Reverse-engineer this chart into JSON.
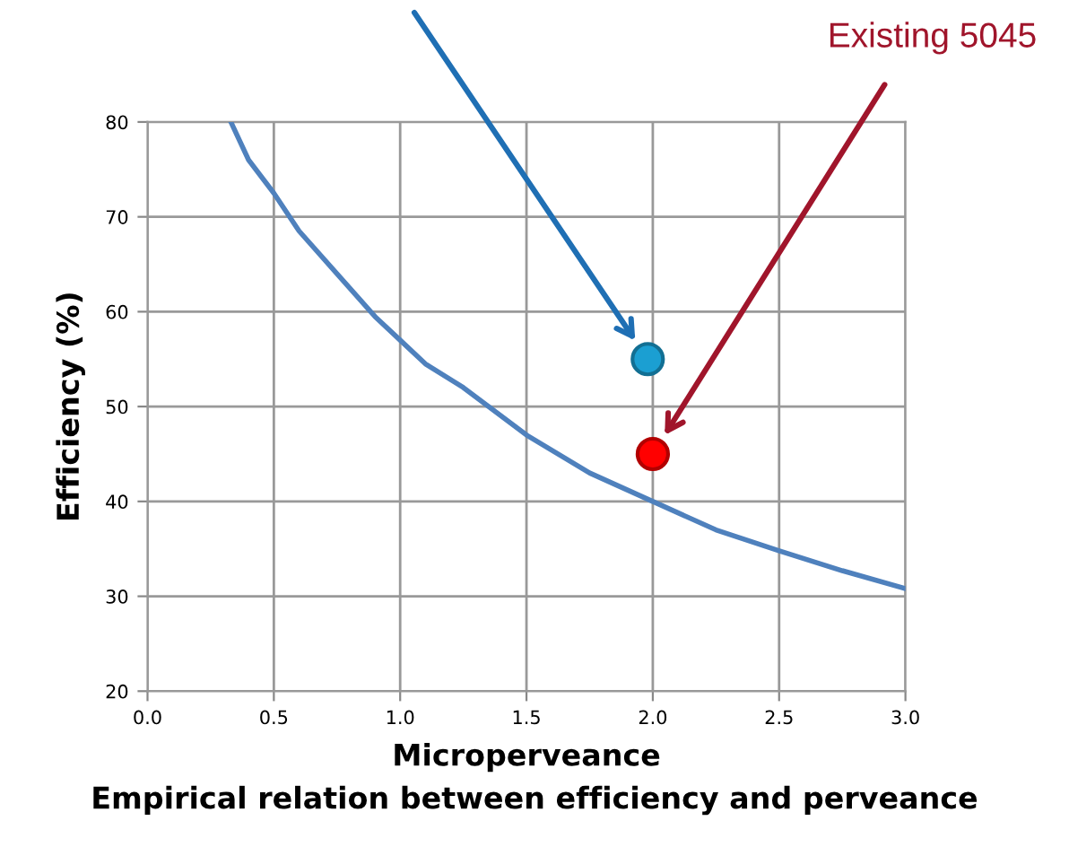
{
  "chart_data": {
    "type": "line",
    "title": "Empirical relation between efficiency and perveance",
    "xlabel": "Microperveance",
    "ylabel": "Efficiency (%)",
    "series": [
      {
        "color": "#4f81bd",
        "x": [
          0.33,
          0.4,
          0.5,
          0.6,
          0.75,
          0.9,
          1.0,
          1.1,
          1.25,
          1.5,
          1.75,
          2.0,
          2.25,
          2.5,
          2.75,
          3.0
        ],
        "values": [
          80,
          76,
          72.5,
          68.5,
          64,
          59.5,
          57,
          54.5,
          52,
          47,
          43,
          40,
          37,
          34.8,
          32.7,
          30.8
        ]
      },
      {
        "type": "scatter",
        "color": "#1b9fd2",
        "x": [
          1.98
        ],
        "values": [
          55
        ],
        "marker": "circle"
      },
      {
        "type": "scatter",
        "color": "#ff0000",
        "x": [
          2.0
        ],
        "values": [
          45
        ],
        "marker": "circle"
      }
    ],
    "annotations": [
      "Existing 5045"
    ],
    "xlim": [
      0,
      3
    ],
    "ylim": [
      20,
      80
    ],
    "xticks": [
      {
        "value": 0,
        "label": "0.0"
      },
      {
        "value": 0.5,
        "label": "0.5"
      },
      {
        "value": 1,
        "label": "1.0"
      },
      {
        "value": 1.5,
        "label": "1.5"
      },
      {
        "value": 2,
        "label": "2.0"
      },
      {
        "value": 2.5,
        "label": "2.5"
      },
      {
        "value": 3,
        "label": "3.0"
      }
    ],
    "yticks": [
      20,
      30,
      40,
      50,
      60,
      70,
      80
    ],
    "grid": true
  }
}
